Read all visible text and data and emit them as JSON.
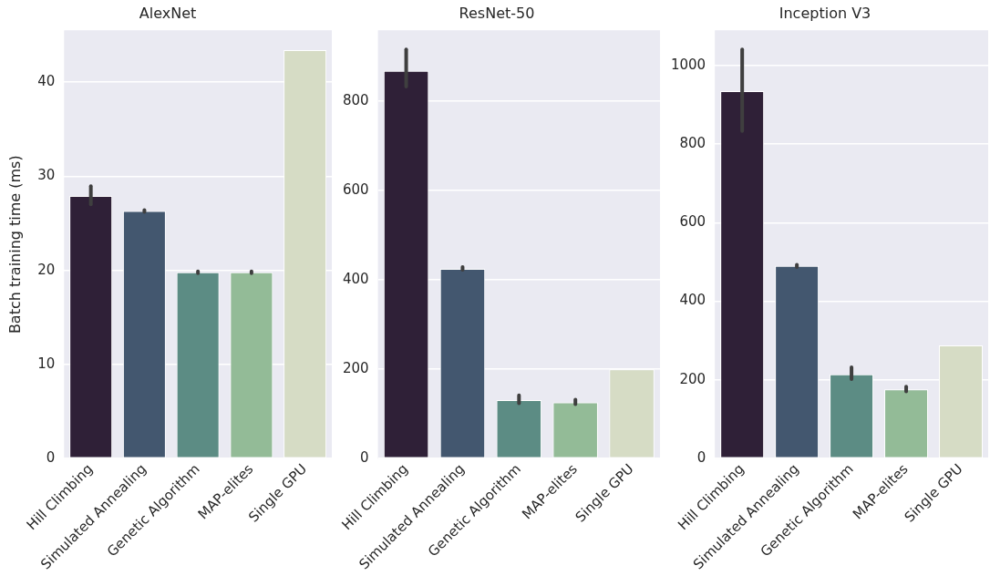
{
  "chart_data": [
    {
      "type": "bar",
      "title": "AlexNet",
      "ylabel": "Batch training time (ms)",
      "categories": [
        "Hill Climbing",
        "Simulated Annealing",
        "Genetic Algorithm",
        "MAP-elites",
        "Single GPU"
      ],
      "values": [
        27.9,
        26.3,
        19.8,
        19.8,
        43.4
      ],
      "colors": [
        "#2f2037",
        "#43576f",
        "#5c8c84",
        "#93bb97",
        "#d6dcc5"
      ],
      "errors": [
        [
          27.0,
          28.95
        ],
        [
          26.2,
          26.4
        ],
        [
          19.7,
          19.9
        ],
        [
          19.7,
          19.9
        ],
        null
      ],
      "ylim": [
        0,
        45.5
      ],
      "yticks": [
        0,
        10,
        20,
        30,
        40
      ],
      "grid": "y"
    },
    {
      "type": "bar",
      "title": "ResNet-50",
      "categories": [
        "Hill Climbing",
        "Simulated Annealing",
        "Genetic Algorithm",
        "MAP-elites",
        "Single GPU"
      ],
      "values": [
        868,
        425,
        131,
        126,
        200
      ],
      "colors": [
        "#2f2037",
        "#43576f",
        "#5c8c84",
        "#93bb97",
        "#d6dcc5"
      ],
      "errors": [
        [
          833,
          916
        ],
        [
          423,
          429
        ],
        [
          124,
          142
        ],
        [
          122,
          132
        ],
        null
      ],
      "ylim": [
        0,
        959
      ],
      "yticks": [
        0,
        200,
        400,
        600,
        800
      ],
      "grid": "y"
    },
    {
      "type": "bar",
      "title": "Inception V3",
      "categories": [
        "Hill Climbing",
        "Simulated Annealing",
        "Genetic Algorithm",
        "MAP-elites",
        "Single GPU"
      ],
      "values": [
        934,
        490,
        214,
        176,
        288
      ],
      "colors": [
        "#2f2037",
        "#43576f",
        "#5c8c84",
        "#93bb97",
        "#d6dcc5"
      ],
      "errors": [
        [
          833,
          1040
        ],
        [
          487,
          493
        ],
        [
          202,
          232
        ],
        [
          171,
          183
        ],
        null
      ],
      "ylim": [
        0,
        1089
      ],
      "yticks": [
        0,
        200,
        400,
        600,
        800,
        1000
      ],
      "grid": "y"
    }
  ]
}
